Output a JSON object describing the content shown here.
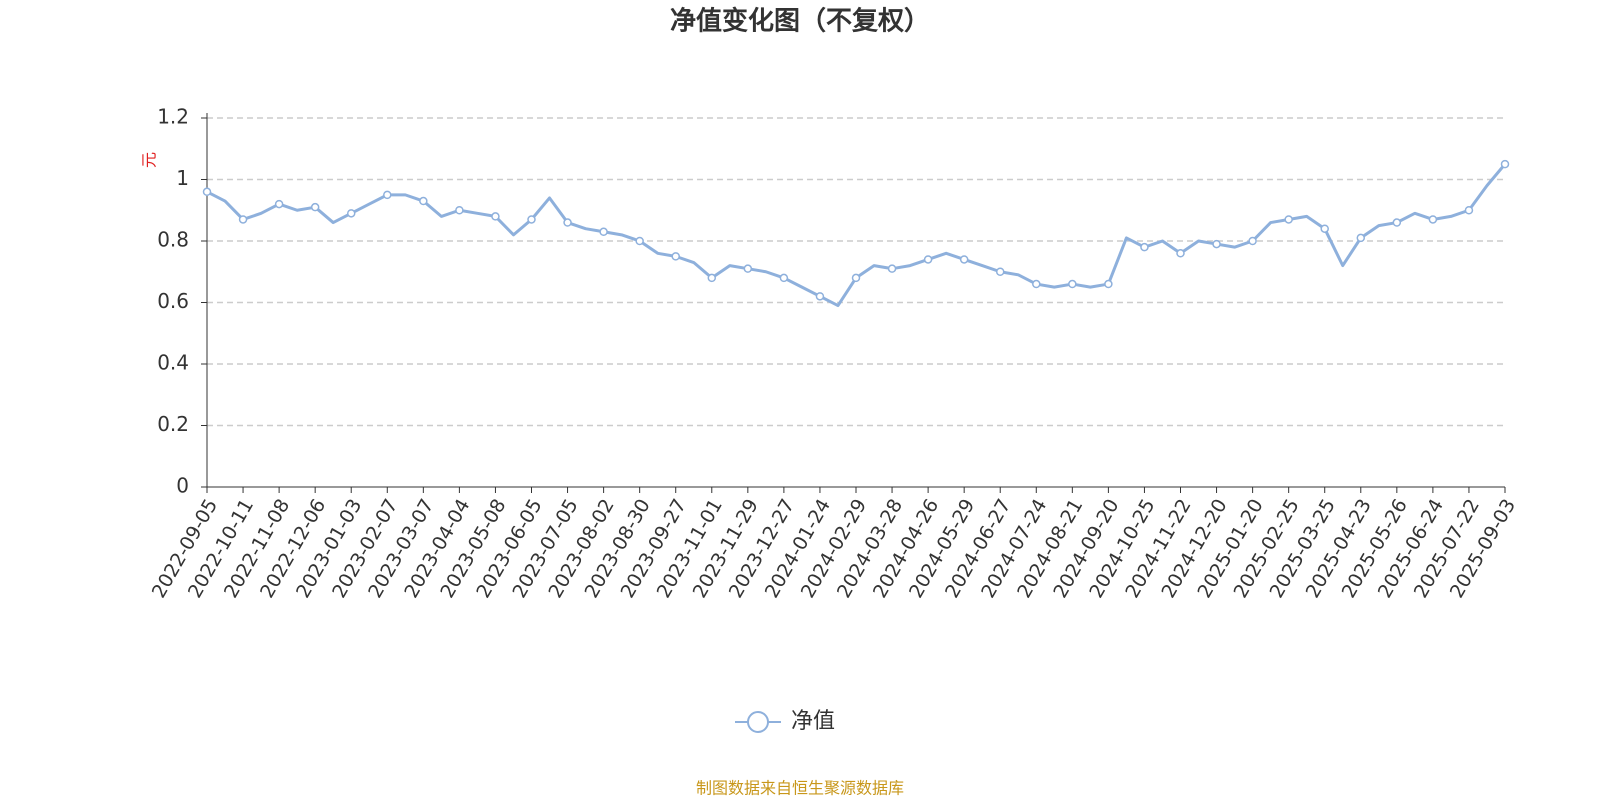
{
  "chart_data": {
    "type": "line",
    "title": "净值变化图（不复权）",
    "y_label": "元",
    "source": "制图数据来自恒生聚源数据库",
    "categories": [
      "2022-09-05",
      null,
      "2022-10-11",
      null,
      "2022-11-08",
      null,
      "2022-12-06",
      null,
      "2023-01-03",
      null,
      "2023-02-07",
      null,
      "2023-03-07",
      null,
      "2023-04-04",
      null,
      "2023-05-08",
      null,
      "2023-06-05",
      null,
      "2023-07-05",
      null,
      "2023-08-02",
      null,
      "2023-08-30",
      null,
      "2023-09-27",
      null,
      "2023-11-01",
      null,
      "2023-11-29",
      null,
      "2023-12-27",
      null,
      "2024-01-24",
      null,
      "2024-02-29",
      null,
      "2024-03-28",
      null,
      "2024-04-26",
      null,
      "2024-05-29",
      null,
      "2024-06-27",
      null,
      "2024-07-24",
      null,
      "2024-08-21",
      null,
      "2024-09-20",
      null,
      "2024-10-25",
      null,
      "2024-11-22",
      null,
      "2024-12-20",
      null,
      "2025-01-20",
      null,
      "2025-02-25",
      null,
      "2025-03-25",
      null,
      "2025-04-23",
      null,
      "2025-05-26",
      null,
      "2025-06-24",
      null,
      "2025-07-22",
      null,
      "2025-09-03"
    ],
    "series": [
      {
        "name": "净值",
        "color": "#8eb0dc",
        "values": [
          0.96,
          0.93,
          0.87,
          0.89,
          0.92,
          0.9,
          0.91,
          0.86,
          0.89,
          0.92,
          0.95,
          0.95,
          0.93,
          0.88,
          0.9,
          0.89,
          0.88,
          0.82,
          0.87,
          0.94,
          0.86,
          0.84,
          0.83,
          0.82,
          0.8,
          0.76,
          0.75,
          0.73,
          0.68,
          0.72,
          0.71,
          0.7,
          0.68,
          0.65,
          0.62,
          0.59,
          0.68,
          0.72,
          0.71,
          0.72,
          0.74,
          0.76,
          0.74,
          0.72,
          0.7,
          0.69,
          0.66,
          0.65,
          0.66,
          0.65,
          0.66,
          0.81,
          0.78,
          0.8,
          0.76,
          0.8,
          0.79,
          0.78,
          0.8,
          0.86,
          0.87,
          0.88,
          0.84,
          0.72,
          0.81,
          0.85,
          0.86,
          0.89,
          0.87,
          0.88,
          0.9,
          0.98,
          1.05
        ]
      }
    ],
    "ylim": [
      0,
      1.2
    ],
    "yticks": [
      0,
      0.2,
      0.4,
      0.6,
      0.8,
      1,
      1.2
    ],
    "grid": true
  }
}
